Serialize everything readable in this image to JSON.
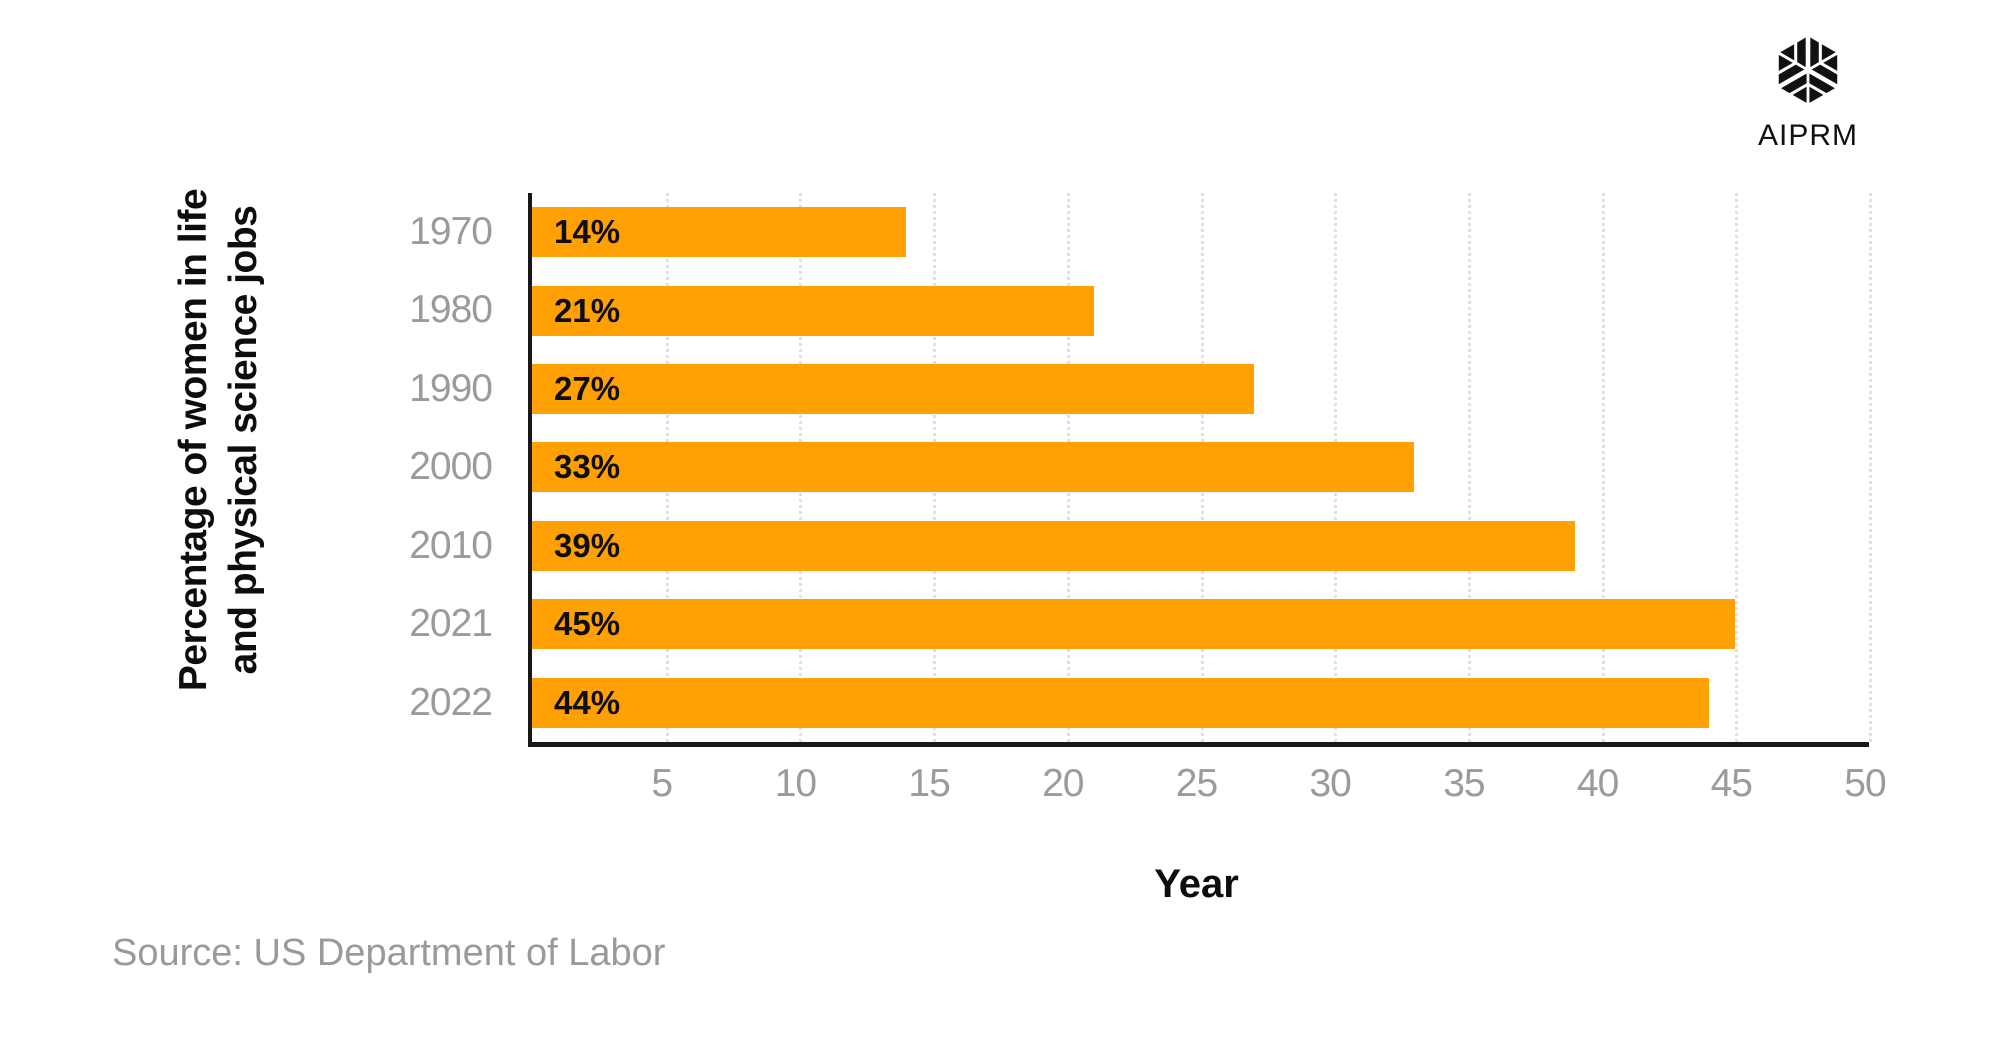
{
  "logo": {
    "label": "AIPRM",
    "icon": "aiprm-cube-icon",
    "color": "#111111"
  },
  "chart_data": {
    "type": "bar",
    "orientation": "horizontal",
    "y_axis_title_lines": [
      "Percentage of women in life",
      "and physical science jobs"
    ],
    "x_axis_title": "Year",
    "categories": [
      "1970",
      "1980",
      "1990",
      "2000",
      "2010",
      "2021",
      "2022"
    ],
    "values": [
      14,
      21,
      27,
      33,
      39,
      45,
      44
    ],
    "value_labels": [
      "14%",
      "21%",
      "27%",
      "33%",
      "39%",
      "45%",
      "44%"
    ],
    "xlim": [
      0,
      50
    ],
    "xticks": [
      5,
      10,
      15,
      20,
      25,
      30,
      35,
      40,
      45,
      50
    ],
    "grid": {
      "vertical": true,
      "style": "dotted"
    },
    "legend": "none",
    "bar_color": "#FFA004"
  },
  "colors": {
    "bar": "#FFA004",
    "axis": "#181818",
    "muted_text": "#9B9B9B",
    "text": "#0E0E0E",
    "gridline": "#E0E0E0"
  },
  "source": {
    "label": "Source: US Department of Labor"
  }
}
